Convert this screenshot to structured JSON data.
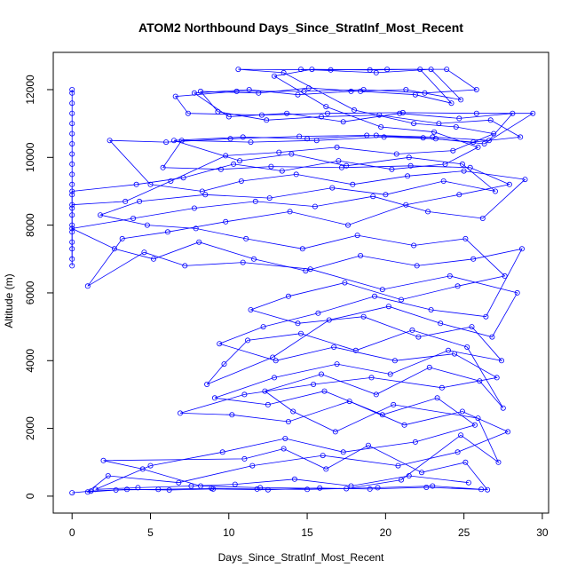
{
  "chart_data": {
    "type": "scatter",
    "title": "ATOM2 Northbound Days_Since_StratInf_Most_Recent",
    "xlabel": "Days_Since_StratInf_Most_Recent",
    "ylabel": "Altitude (m)",
    "xlim": [
      -1.2,
      30.4
    ],
    "ylim": [
      -500,
      13100
    ],
    "x_ticks": [
      0,
      5,
      10,
      15,
      20,
      25,
      30
    ],
    "x_tick_labels": [
      "0",
      "5",
      "10",
      "15",
      "20",
      "25",
      "30"
    ],
    "y_ticks": [
      0,
      2000,
      4000,
      6000,
      8000,
      10000,
      12000
    ],
    "y_tick_labels": [
      "0",
      "2000",
      "4000",
      "6000",
      "8000",
      "10000",
      "12000"
    ],
    "grid": false,
    "legend": "none",
    "series_style": {
      "color": "#0000ff",
      "marker": "open-circle",
      "connected": true
    },
    "series": [
      {
        "points": [
          [
            0.0,
            100
          ],
          [
            1.2,
            150
          ],
          [
            3.5,
            200
          ],
          [
            6.2,
            180
          ],
          [
            9.0,
            210
          ],
          [
            12.5,
            190
          ],
          [
            15.8,
            240
          ],
          [
            19.0,
            210
          ],
          [
            22.6,
            260
          ],
          [
            26.5,
            190
          ],
          [
            25.1,
            1000
          ],
          [
            22.3,
            700
          ],
          [
            18.9,
            1500
          ],
          [
            16.2,
            800
          ],
          [
            13.5,
            1400
          ],
          [
            11.0,
            1100
          ],
          [
            2.0,
            1050
          ],
          [
            4.5,
            800
          ],
          [
            8.2,
            300
          ],
          [
            12.0,
            250
          ],
          [
            17.5,
            220
          ],
          [
            21.0,
            480
          ],
          [
            24.8,
            1800
          ],
          [
            27.2,
            1000
          ],
          [
            25.9,
            2300
          ],
          [
            20.5,
            2700
          ],
          [
            16.8,
            1900
          ],
          [
            14.1,
            2500
          ],
          [
            12.3,
            3100
          ],
          [
            15.9,
            3600
          ],
          [
            19.4,
            3000
          ],
          [
            22.8,
            3800
          ],
          [
            26.0,
            3400
          ],
          [
            27.5,
            2600
          ],
          [
            25.2,
            4400
          ],
          [
            21.7,
            4900
          ],
          [
            18.1,
            4300
          ],
          [
            14.6,
            4800
          ],
          [
            11.2,
            4600
          ],
          [
            9.7,
            3900
          ],
          [
            8.6,
            3300
          ],
          [
            12.8,
            4100
          ],
          [
            16.4,
            5200
          ],
          [
            20.2,
            5600
          ],
          [
            23.5,
            5100
          ],
          [
            26.8,
            4700
          ],
          [
            28.4,
            6000
          ],
          [
            24.1,
            6500
          ],
          [
            19.8,
            6100
          ],
          [
            15.2,
            6700
          ],
          [
            10.9,
            6900
          ],
          [
            7.2,
            6800
          ],
          [
            4.6,
            7200
          ],
          [
            1.0,
            6200
          ],
          [
            3.2,
            7600
          ],
          [
            6.1,
            7800
          ],
          [
            9.8,
            8100
          ],
          [
            13.9,
            8400
          ],
          [
            17.6,
            8000
          ],
          [
            21.3,
            8600
          ],
          [
            24.7,
            8900
          ],
          [
            27.9,
            9200
          ],
          [
            25.4,
            9700
          ],
          [
            21.6,
            9750
          ],
          [
            17.2,
            9700
          ],
          [
            12.7,
            9730
          ],
          [
            9.5,
            9650
          ],
          [
            5.8,
            9700
          ],
          [
            7.0,
            10500
          ],
          [
            11.4,
            10450
          ],
          [
            15.6,
            10500
          ],
          [
            19.9,
            10600
          ],
          [
            23.2,
            10550
          ],
          [
            26.3,
            10400
          ],
          [
            29.4,
            11300
          ],
          [
            25.8,
            11300
          ],
          [
            21.1,
            11320
          ],
          [
            16.3,
            11300
          ],
          [
            12.1,
            11250
          ],
          [
            7.4,
            11300
          ],
          [
            6.6,
            11800
          ],
          [
            10.5,
            11950
          ],
          [
            14.8,
            11950
          ],
          [
            18.6,
            12000
          ],
          [
            22.5,
            11900
          ],
          [
            25.8,
            12000
          ],
          [
            23.9,
            12600
          ],
          [
            20.1,
            12600
          ],
          [
            16.5,
            12580
          ],
          [
            10.6,
            12600
          ],
          [
            13.5,
            12500
          ],
          [
            18.0,
            11400
          ],
          [
            21.8,
            11000
          ],
          [
            24.5,
            10900
          ],
          [
            26.9,
            10700
          ],
          [
            24.3,
            10200
          ],
          [
            20.7,
            10100
          ],
          [
            16.9,
            10300
          ],
          [
            13.2,
            10150
          ],
          [
            9.8,
            10050
          ],
          [
            6.3,
            9300
          ],
          [
            3.4,
            8700
          ],
          [
            0.0,
            8600
          ],
          [
            0.0,
            9200
          ],
          [
            0.0,
            9800
          ],
          [
            0.0,
            10400
          ],
          [
            0.0,
            11000
          ],
          [
            0.0,
            11600
          ],
          [
            0.0,
            12000
          ],
          [
            0.0,
            11900
          ],
          [
            0.0,
            11300
          ],
          [
            0.0,
            10700
          ],
          [
            0.0,
            10100
          ],
          [
            0.0,
            9500
          ],
          [
            0.0,
            8900
          ],
          [
            0.0,
            8300
          ],
          [
            0.0,
            7800
          ],
          [
            0.0,
            7300
          ],
          [
            0.0,
            6800
          ]
        ]
      },
      {
        "points": [
          [
            26.1,
            200
          ],
          [
            23.0,
            300
          ],
          [
            19.5,
            250
          ],
          [
            15.0,
            200
          ],
          [
            11.8,
            210
          ],
          [
            8.9,
            230
          ],
          [
            5.5,
            200
          ],
          [
            2.8,
            180
          ],
          [
            1.0,
            120
          ],
          [
            2.3,
            600
          ],
          [
            6.8,
            400
          ],
          [
            11.5,
            900
          ],
          [
            16.0,
            1200
          ],
          [
            20.8,
            900
          ],
          [
            24.6,
            1300
          ],
          [
            27.8,
            1900
          ],
          [
            24.9,
            2500
          ],
          [
            21.2,
            2100
          ],
          [
            17.7,
            2800
          ],
          [
            13.8,
            2200
          ],
          [
            10.2,
            2400
          ],
          [
            6.9,
            2450
          ],
          [
            11.0,
            3000
          ],
          [
            15.4,
            3300
          ],
          [
            19.1,
            3500
          ],
          [
            23.6,
            3200
          ],
          [
            27.1,
            3500
          ],
          [
            24.4,
            4200
          ],
          [
            20.6,
            4000
          ],
          [
            16.7,
            4400
          ],
          [
            13.0,
            4000
          ],
          [
            9.4,
            4500
          ],
          [
            12.2,
            5000
          ],
          [
            15.7,
            5400
          ],
          [
            19.3,
            5900
          ],
          [
            22.9,
            5500
          ],
          [
            26.4,
            5300
          ],
          [
            28.7,
            7300
          ],
          [
            25.6,
            7000
          ],
          [
            22.0,
            6800
          ],
          [
            18.4,
            7100
          ],
          [
            14.9,
            6650
          ],
          [
            11.6,
            7000
          ],
          [
            8.1,
            7500
          ],
          [
            5.2,
            7000
          ],
          [
            2.7,
            7300
          ],
          [
            0.0,
            7900
          ],
          [
            3.9,
            8200
          ],
          [
            7.8,
            8500
          ],
          [
            11.7,
            8700
          ],
          [
            15.5,
            8550
          ],
          [
            19.2,
            8850
          ],
          [
            22.7,
            8400
          ],
          [
            26.2,
            8200
          ],
          [
            28.9,
            9350
          ],
          [
            25.0,
            9600
          ],
          [
            21.4,
            9450
          ],
          [
            17.9,
            9200
          ],
          [
            14.3,
            9500
          ],
          [
            10.8,
            9300
          ],
          [
            8.3,
            9000
          ],
          [
            5.0,
            9200
          ],
          [
            2.4,
            10500
          ],
          [
            6.0,
            10450
          ],
          [
            10.1,
            10550
          ],
          [
            14.5,
            10620
          ],
          [
            18.8,
            10650
          ],
          [
            22.4,
            10580
          ],
          [
            25.6,
            10450
          ],
          [
            28.6,
            10600
          ],
          [
            26.7,
            11100
          ],
          [
            23.4,
            11000
          ],
          [
            19.6,
            11250
          ],
          [
            15.9,
            11200
          ],
          [
            12.4,
            11100
          ],
          [
            9.3,
            11350
          ],
          [
            8.2,
            11950
          ],
          [
            11.9,
            11900
          ],
          [
            15.1,
            12050
          ],
          [
            18.4,
            11950
          ],
          [
            21.9,
            11850
          ],
          [
            24.2,
            11600
          ],
          [
            22.2,
            12600
          ],
          [
            19.0,
            12580
          ],
          [
            15.3,
            12600
          ],
          [
            12.9,
            12400
          ],
          [
            16.2,
            11500
          ],
          [
            19.7,
            10900
          ],
          [
            23.1,
            10750
          ],
          [
            25.9,
            10300
          ],
          [
            23.8,
            9800
          ],
          [
            20.4,
            9650
          ],
          [
            17.0,
            9900
          ],
          [
            13.4,
            9600
          ],
          [
            10.3,
            9800
          ],
          [
            7.1,
            9400
          ],
          [
            4.1,
            9200
          ],
          [
            0.0,
            9000
          ],
          [
            0.0,
            8500
          ],
          [
            0.0,
            8000
          ],
          [
            0.0,
            7500
          ],
          [
            0.0,
            7000
          ]
        ]
      },
      {
        "points": [
          [
            25.3,
            400
          ],
          [
            21.5,
            600
          ],
          [
            17.8,
            300
          ],
          [
            14.2,
            500
          ],
          [
            10.4,
            350
          ],
          [
            7.6,
            300
          ],
          [
            4.2,
            250
          ],
          [
            1.5,
            200
          ],
          [
            5.0,
            900
          ],
          [
            9.6,
            1300
          ],
          [
            13.6,
            1700
          ],
          [
            17.3,
            1300
          ],
          [
            21.9,
            1600
          ],
          [
            25.7,
            2100
          ],
          [
            23.3,
            2900
          ],
          [
            19.8,
            2400
          ],
          [
            16.1,
            3100
          ],
          [
            12.5,
            2700
          ],
          [
            9.1,
            2900
          ],
          [
            12.9,
            3500
          ],
          [
            16.9,
            3900
          ],
          [
            20.3,
            3600
          ],
          [
            24.0,
            4300
          ],
          [
            27.4,
            4000
          ],
          [
            25.5,
            5000
          ],
          [
            22.1,
            4700
          ],
          [
            18.6,
            5300
          ],
          [
            14.4,
            5100
          ],
          [
            11.4,
            5500
          ],
          [
            13.8,
            5900
          ],
          [
            17.4,
            6300
          ],
          [
            21.0,
            5800
          ],
          [
            24.6,
            6200
          ],
          [
            27.6,
            6500
          ],
          [
            25.1,
            7600
          ],
          [
            21.8,
            7400
          ],
          [
            18.2,
            7700
          ],
          [
            14.7,
            7300
          ],
          [
            11.1,
            7600
          ],
          [
            7.9,
            7900
          ],
          [
            4.8,
            8000
          ],
          [
            1.8,
            8300
          ],
          [
            4.3,
            8700
          ],
          [
            8.5,
            8900
          ],
          [
            12.6,
            8800
          ],
          [
            16.6,
            9100
          ],
          [
            20.0,
            8900
          ],
          [
            23.7,
            9300
          ],
          [
            27.0,
            9000
          ],
          [
            24.9,
            9800
          ],
          [
            21.5,
            10000
          ],
          [
            17.5,
            9750
          ],
          [
            14.0,
            10100
          ],
          [
            10.7,
            9900
          ],
          [
            6.5,
            10500
          ],
          [
            10.9,
            10600
          ],
          [
            15.0,
            10550
          ],
          [
            19.4,
            10650
          ],
          [
            23.0,
            10600
          ],
          [
            26.6,
            10500
          ],
          [
            28.1,
            11300
          ],
          [
            24.7,
            11150
          ],
          [
            20.9,
            11300
          ],
          [
            17.3,
            11050
          ],
          [
            13.7,
            11300
          ],
          [
            10.0,
            11200
          ],
          [
            7.8,
            11900
          ],
          [
            11.3,
            12000
          ],
          [
            14.4,
            11850
          ],
          [
            17.8,
            11950
          ],
          [
            21.3,
            12000
          ],
          [
            24.8,
            11700
          ],
          [
            22.9,
            12600
          ],
          [
            19.4,
            12500
          ],
          [
            14.6,
            12600
          ]
        ]
      }
    ]
  }
}
